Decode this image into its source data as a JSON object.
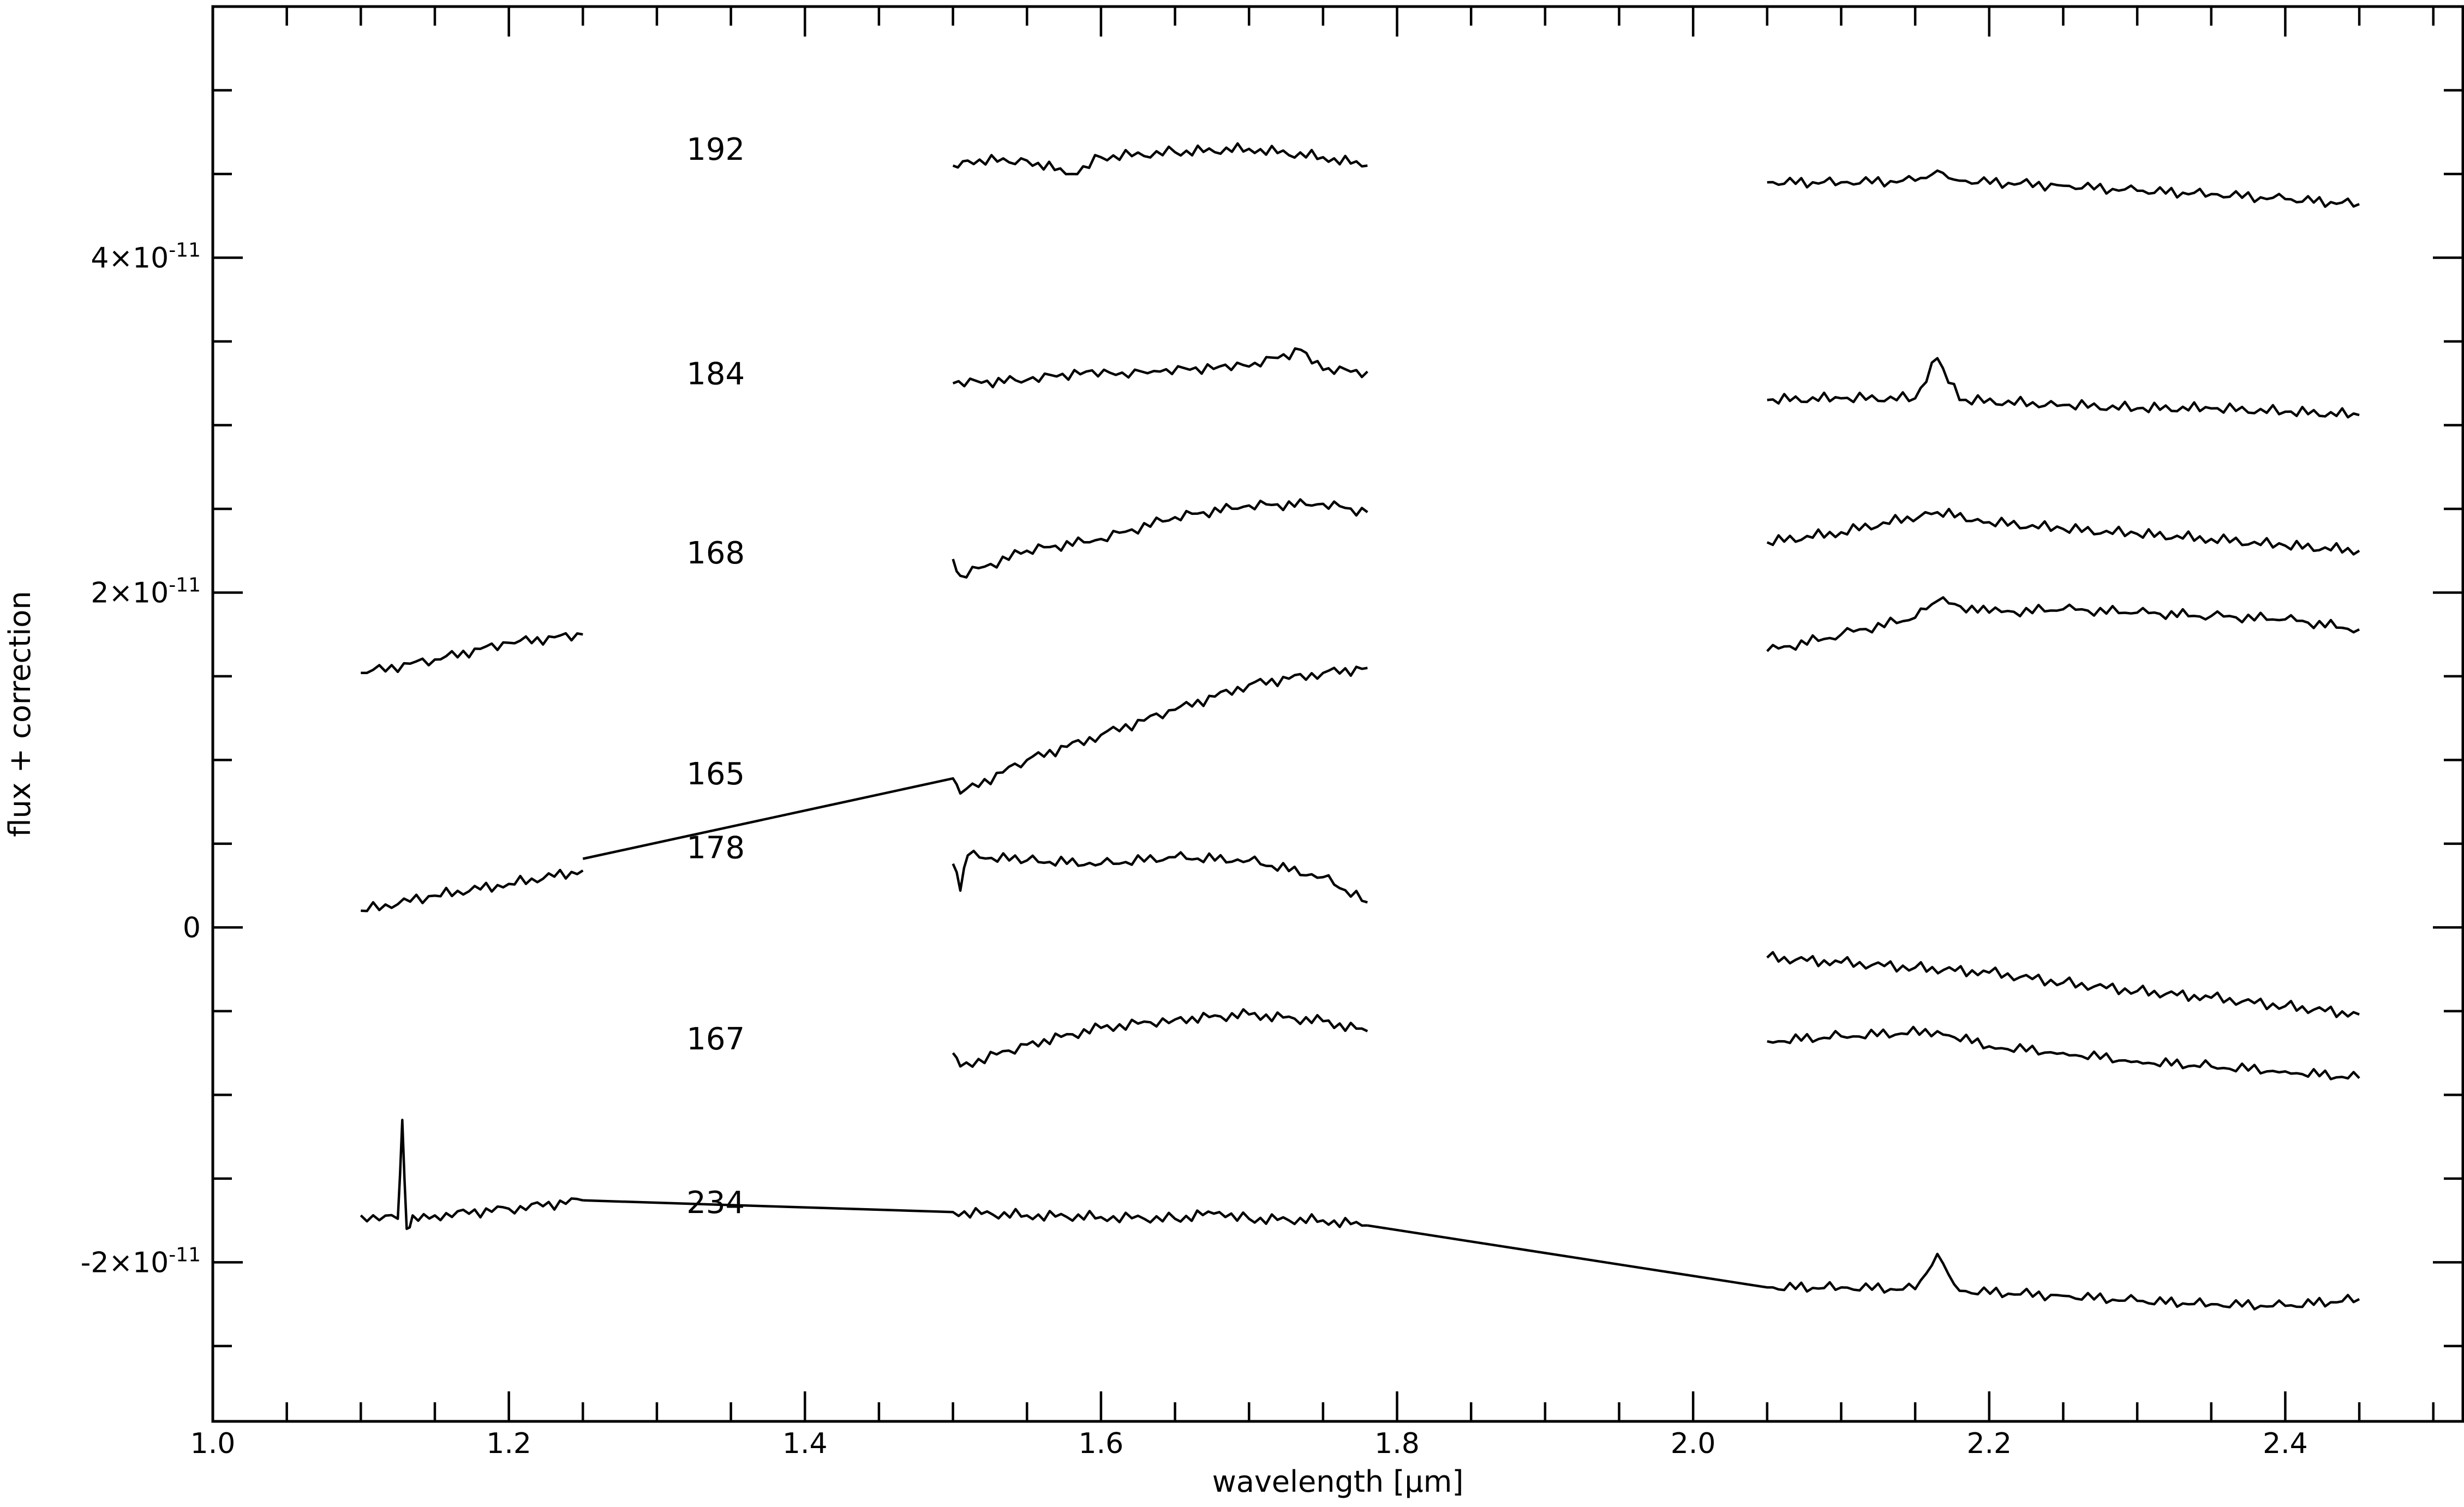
{
  "chart_data": {
    "type": "line",
    "title": "",
    "xlabel": "wavelength [μm]",
    "ylabel": "flux + correction",
    "xlim": [
      1.0,
      2.52
    ],
    "ylim": [
      -2.95e-11,
      5.5e-11
    ],
    "grid": false,
    "x_ticks": [
      {
        "value": 1.0,
        "label": "1.0"
      },
      {
        "value": 1.2,
        "label": "1.2"
      },
      {
        "value": 1.4,
        "label": "1.4"
      },
      {
        "value": 1.6,
        "label": "1.6"
      },
      {
        "value": 1.8,
        "label": "1.8"
      },
      {
        "value": 2.0,
        "label": "2.0"
      },
      {
        "value": 2.2,
        "label": "2.2"
      },
      {
        "value": 2.4,
        "label": "2.4"
      }
    ],
    "x_minor_step": 0.05,
    "y_ticks": [
      {
        "value": 4e-11,
        "base": "4×10",
        "exp": "-11"
      },
      {
        "value": 2e-11,
        "base": "2×10",
        "exp": "-11"
      },
      {
        "value": 0,
        "base": "0",
        "exp": ""
      },
      {
        "value": -2e-11,
        "base": "-2×10",
        "exp": "-11"
      }
    ],
    "y_minor_step": 5e-12,
    "series": [
      {
        "name": "192",
        "label_pos": [
          1.32,
          4.65e-11
        ],
        "segments": [
          [
            [
              1.5,
              4.55e-11
            ],
            [
              1.51,
              4.58e-11
            ],
            [
              1.55,
              4.58e-11
            ],
            [
              1.58,
              4.5e-11
            ],
            [
              1.6,
              4.6e-11
            ],
            [
              1.65,
              4.63e-11
            ],
            [
              1.7,
              4.65e-11
            ],
            [
              1.75,
              4.6e-11
            ],
            [
              1.78,
              4.55e-11
            ]
          ],
          [
            [
              2.05,
              4.45e-11
            ],
            [
              2.1,
              4.45e-11
            ],
            [
              2.15,
              4.46e-11
            ],
            [
              2.165,
              4.52e-11
            ],
            [
              2.18,
              4.46e-11
            ],
            [
              2.25,
              4.43e-11
            ],
            [
              2.3,
              4.4e-11
            ],
            [
              2.35,
              4.38e-11
            ],
            [
              2.4,
              4.35e-11
            ],
            [
              2.45,
              4.32e-11
            ]
          ]
        ]
      },
      {
        "name": "184",
        "label_pos": [
          1.32,
          3.31e-11
        ],
        "segments": [
          [
            [
              1.5,
              3.25e-11
            ],
            [
              1.55,
              3.27e-11
            ],
            [
              1.59,
              3.32e-11
            ],
            [
              1.61,
              3.3e-11
            ],
            [
              1.64,
              3.32e-11
            ],
            [
              1.68,
              3.35e-11
            ],
            [
              1.7,
              3.35e-11
            ],
            [
              1.735,
              3.45e-11
            ],
            [
              1.75,
              3.33e-11
            ],
            [
              1.78,
              3.32e-11
            ]
          ],
          [
            [
              2.05,
              3.15e-11
            ],
            [
              2.1,
              3.16e-11
            ],
            [
              2.15,
              3.16e-11
            ],
            [
              2.165,
              3.4e-11
            ],
            [
              2.18,
              3.15e-11
            ],
            [
              2.25,
              3.12e-11
            ],
            [
              2.3,
              3.1e-11
            ],
            [
              2.35,
              3.1e-11
            ],
            [
              2.4,
              3.08e-11
            ],
            [
              2.45,
              3.06e-11
            ]
          ]
        ]
      },
      {
        "name": "168",
        "label_pos": [
          1.32,
          2.24e-11
        ],
        "segments": [
          [
            [
              1.1,
              1.52e-11
            ],
            [
              1.15,
              1.6e-11
            ],
            [
              1.2,
              1.7e-11
            ],
            [
              1.25,
              1.75e-11
            ]
          ],
          [
            [
              1.5,
              2.2e-11
            ],
            [
              1.505,
              2.1e-11
            ],
            [
              1.55,
              2.25e-11
            ],
            [
              1.6,
              2.32e-11
            ],
            [
              1.65,
              2.45e-11
            ],
            [
              1.7,
              2.52e-11
            ],
            [
              1.75,
              2.53e-11
            ],
            [
              1.78,
              2.48e-11
            ]
          ],
          [
            [
              2.05,
              2.3e-11
            ],
            [
              2.1,
              2.36e-11
            ],
            [
              2.165,
              2.48e-11
            ],
            [
              2.2,
              2.42e-11
            ],
            [
              2.25,
              2.38e-11
            ],
            [
              2.3,
              2.35e-11
            ],
            [
              2.35,
              2.32e-11
            ],
            [
              2.4,
              2.28e-11
            ],
            [
              2.45,
              2.25e-11
            ]
          ]
        ]
      },
      {
        "name": "165",
        "label_pos": [
          1.32,
          9.2e-12
        ],
        "segments": [
          [
            [
              1.1,
              1e-12
            ],
            [
              1.15,
              1.9e-12
            ],
            [
              1.2,
              2.6e-12
            ],
            [
              1.25,
              3.4e-12
            ]
          ],
          [
            [
              1.25,
              4.1e-12
            ],
            [
              1.5,
              8.9e-12
            ],
            [
              1.505,
              8e-12
            ],
            [
              1.55,
              1e-11
            ],
            [
              1.6,
              1.15e-11
            ],
            [
              1.65,
              1.3e-11
            ],
            [
              1.7,
              1.45e-11
            ],
            [
              1.75,
              1.52e-11
            ],
            [
              1.78,
              1.55e-11
            ]
          ],
          [
            [
              2.05,
              1.65e-11
            ],
            [
              2.1,
              1.75e-11
            ],
            [
              2.15,
              1.85e-11
            ],
            [
              2.165,
              1.95e-11
            ],
            [
              2.2,
              1.88e-11
            ],
            [
              2.25,
              1.9e-11
            ],
            [
              2.3,
              1.88e-11
            ],
            [
              2.35,
              1.86e-11
            ],
            [
              2.4,
              1.84e-11
            ],
            [
              2.45,
              1.78e-11
            ]
          ]
        ]
      },
      {
        "name": "178",
        "label_pos": [
          1.32,
          4.78e-12
        ],
        "segments": [
          [
            [
              1.5,
              3.8e-12
            ],
            [
              1.505,
              2.2e-12
            ],
            [
              1.51,
              4.3e-12
            ],
            [
              1.55,
              4e-12
            ],
            [
              1.6,
              3.8e-12
            ],
            [
              1.65,
              4.2e-12
            ],
            [
              1.7,
              4e-12
            ],
            [
              1.75,
              3e-12
            ],
            [
              1.78,
              1.5e-12
            ]
          ],
          [
            [
              2.05,
              -1.8e-12
            ],
            [
              2.1,
              -2.1e-12
            ],
            [
              2.15,
              -2.4e-12
            ],
            [
              2.2,
              -2.7e-12
            ],
            [
              2.25,
              -3.3e-12
            ],
            [
              2.3,
              -3.8e-12
            ],
            [
              2.35,
              -4.2e-12
            ],
            [
              2.4,
              -4.7e-12
            ],
            [
              2.45,
              -5.2e-12
            ]
          ]
        ]
      },
      {
        "name": "167",
        "label_pos": [
          1.32,
          -6.64e-12
        ],
        "segments": [
          [
            [
              1.5,
              -7.5e-12
            ],
            [
              1.505,
              -8.3e-12
            ],
            [
              1.55,
              -7e-12
            ],
            [
              1.6,
              -6e-12
            ],
            [
              1.65,
              -5.5e-12
            ],
            [
              1.7,
              -5.2e-12
            ],
            [
              1.75,
              -5.6e-12
            ],
            [
              1.78,
              -6.2e-12
            ]
          ],
          [
            [
              2.05,
              -6.8e-12
            ],
            [
              2.1,
              -6.5e-12
            ],
            [
              2.165,
              -6.2e-12
            ],
            [
              2.2,
              -7.1e-12
            ],
            [
              2.25,
              -7.5e-12
            ],
            [
              2.3,
              -8e-12
            ],
            [
              2.35,
              -8.3e-12
            ],
            [
              2.4,
              -8.6e-12
            ],
            [
              2.45,
              -9e-12
            ]
          ]
        ]
      },
      {
        "name": "234",
        "label_pos": [
          1.32,
          -1.64e-11
        ],
        "segments": [
          [
            [
              1.1,
              -1.72e-11
            ],
            [
              1.125,
              -1.74e-11
            ],
            [
              1.128,
              -1.15e-11
            ],
            [
              1.131,
              -1.8e-11
            ],
            [
              1.135,
              -1.72e-11
            ],
            [
              1.15,
              -1.72e-11
            ],
            [
              1.2,
              -1.68e-11
            ],
            [
              1.25,
              -1.63e-11
            ]
          ],
          [
            [
              1.25,
              -1.63e-11
            ],
            [
              1.5,
              -1.7e-11
            ],
            [
              1.55,
              -1.72e-11
            ],
            [
              1.6,
              -1.73e-11
            ],
            [
              1.65,
              -1.74e-11
            ],
            [
              1.68,
              -1.7e-11
            ],
            [
              1.7,
              -1.74e-11
            ],
            [
              1.75,
              -1.75e-11
            ],
            [
              1.78,
              -1.78e-11
            ]
          ],
          [
            [
              1.78,
              -1.78e-11
            ],
            [
              2.05,
              -2.15e-11
            ],
            [
              2.1,
              -2.15e-11
            ],
            [
              2.15,
              -2.16e-11
            ],
            [
              2.165,
              -1.95e-11
            ],
            [
              2.18,
              -2.17e-11
            ],
            [
              2.25,
              -2.2e-11
            ],
            [
              2.3,
              -2.23e-11
            ],
            [
              2.35,
              -2.25e-11
            ],
            [
              2.4,
              -2.26e-11
            ],
            [
              2.45,
              -2.22e-11
            ]
          ]
        ]
      }
    ]
  }
}
